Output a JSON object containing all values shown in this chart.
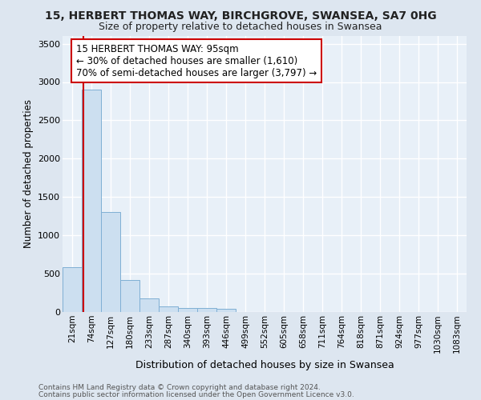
{
  "title1": "15, HERBERT THOMAS WAY, BIRCHGROVE, SWANSEA, SA7 0HG",
  "title2": "Size of property relative to detached houses in Swansea",
  "xlabel": "Distribution of detached houses by size in Swansea",
  "ylabel": "Number of detached properties",
  "footer1": "Contains HM Land Registry data © Crown copyright and database right 2024.",
  "footer2": "Contains public sector information licensed under the Open Government Licence v3.0.",
  "categories": [
    "21sqm",
    "74sqm",
    "127sqm",
    "180sqm",
    "233sqm",
    "287sqm",
    "340sqm",
    "393sqm",
    "446sqm",
    "499sqm",
    "552sqm",
    "605sqm",
    "658sqm",
    "711sqm",
    "764sqm",
    "818sqm",
    "871sqm",
    "924sqm",
    "977sqm",
    "1030sqm",
    "1083sqm"
  ],
  "bar_values": [
    580,
    2900,
    1300,
    420,
    175,
    75,
    55,
    50,
    45,
    0,
    0,
    0,
    0,
    0,
    0,
    0,
    0,
    0,
    0,
    0,
    0
  ],
  "bar_color": "#ccdff0",
  "bar_edge_color": "#7fafd4",
  "ylim": [
    0,
    3600
  ],
  "yticks": [
    0,
    500,
    1000,
    1500,
    2000,
    2500,
    3000,
    3500
  ],
  "red_line_x": 0.575,
  "red_line_color": "#cc0000",
  "annotation_text1": "15 HERBERT THOMAS WAY: 95sqm",
  "annotation_text2": "← 30% of detached houses are smaller (1,610)",
  "annotation_text3": "70% of semi-detached houses are larger (3,797) →",
  "annotation_box_color": "#ffffff",
  "annotation_box_edge": "#cc0000",
  "bg_color": "#dde6f0",
  "plot_bg_color": "#e8f0f8",
  "grid_color": "#ffffff",
  "title1_fontsize": 10,
  "title2_fontsize": 9
}
